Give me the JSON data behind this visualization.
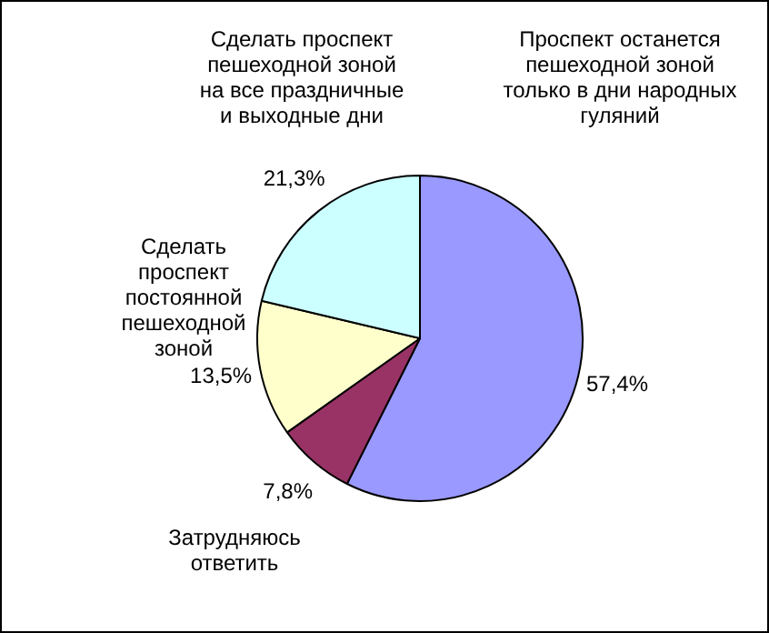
{
  "chart_data": {
    "type": "pie",
    "categories": [
      "Проспект останется\nпешеходной зоной\nтолько в дни народных\nгуляний",
      "Затрудняюсь\nответить",
      "Сделать\nпроспект\nпостоянной\nпешеходной\nзоной",
      "Сделать проспект\nпешеходной зоной\nна все праздничные\nи выходные дни"
    ],
    "values": [
      57.4,
      7.8,
      13.5,
      21.3
    ],
    "value_labels": [
      "57,4%",
      "7,8%",
      "13,5%",
      "21,3%"
    ],
    "colors": [
      "#9999ff",
      "#993366",
      "#ffffcc",
      "#ccffff"
    ],
    "legend": false
  }
}
